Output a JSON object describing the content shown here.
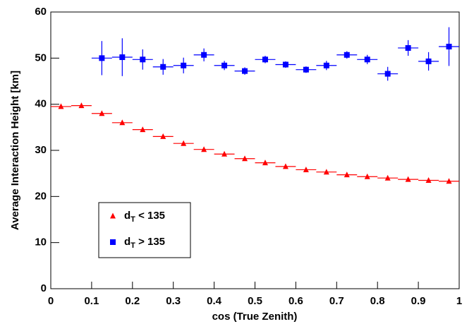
{
  "chart_data": {
    "type": "scatter",
    "x_label": "cos (True Zenith)",
    "y_label": "Average Interaction Height [km]",
    "xlim": [
      0,
      1
    ],
    "ylim": [
      0,
      60
    ],
    "xticks": [
      0,
      0.1,
      0.2,
      0.3,
      0.4,
      0.5,
      0.6,
      0.7,
      0.8,
      0.9,
      1
    ],
    "yticks": [
      0,
      10,
      20,
      30,
      40,
      50,
      60
    ],
    "legend": "bottom-left",
    "series": [
      {
        "name": "dT < 135",
        "color": "#ff0000",
        "marker": "triangle",
        "x": [
          0.025,
          0.075,
          0.125,
          0.175,
          0.225,
          0.275,
          0.325,
          0.375,
          0.425,
          0.475,
          0.525,
          0.575,
          0.625,
          0.675,
          0.725,
          0.775,
          0.825,
          0.875,
          0.925,
          0.975
        ],
        "values": [
          39.5,
          39.7,
          38,
          36,
          34.5,
          33,
          31.5,
          30.2,
          29.2,
          28.2,
          27.3,
          26.5,
          25.8,
          25.3,
          24.7,
          24.3,
          24,
          23.7,
          23.5,
          23.3
        ],
        "xerr": [
          0.025,
          0.025,
          0.025,
          0.025,
          0.025,
          0.025,
          0.025,
          0.025,
          0.025,
          0.025,
          0.025,
          0.025,
          0.025,
          0.025,
          0.025,
          0.025,
          0.025,
          0.025,
          0.025,
          0.025
        ]
      },
      {
        "name": "dT > 135",
        "color": "#0000ff",
        "marker": "square",
        "x": [
          0.125,
          0.175,
          0.225,
          0.275,
          0.325,
          0.375,
          0.425,
          0.475,
          0.525,
          0.575,
          0.625,
          0.675,
          0.725,
          0.775,
          0.825,
          0.875,
          0.925,
          0.975
        ],
        "values": [
          50,
          50.2,
          49.7,
          48.1,
          48.4,
          50.7,
          48.4,
          47.2,
          49.7,
          48.6,
          47.5,
          48.4,
          50.7,
          49.7,
          46.6,
          52.2,
          49.3,
          52.5
        ],
        "xerr": [
          0.025,
          0.025,
          0.025,
          0.025,
          0.025,
          0.025,
          0.025,
          0.025,
          0.025,
          0.025,
          0.025,
          0.025,
          0.025,
          0.025,
          0.025,
          0.025,
          0.025,
          0.025
        ],
        "yerr": [
          3.7,
          4.1,
          2.2,
          1.7,
          1.7,
          1.4,
          1.0,
          0.8,
          0.8,
          0.7,
          0.7,
          1.0,
          0.8,
          1.0,
          1.5,
          1.7,
          2.0,
          4.2
        ]
      }
    ]
  }
}
